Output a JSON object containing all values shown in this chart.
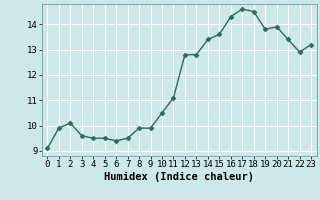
{
  "x": [
    0,
    1,
    2,
    3,
    4,
    5,
    6,
    7,
    8,
    9,
    10,
    11,
    12,
    13,
    14,
    15,
    16,
    17,
    18,
    19,
    20,
    21,
    22,
    23
  ],
  "y": [
    9.1,
    9.9,
    10.1,
    9.6,
    9.5,
    9.5,
    9.4,
    9.5,
    9.9,
    9.9,
    10.5,
    11.1,
    12.8,
    12.8,
    13.4,
    13.6,
    14.3,
    14.6,
    14.5,
    13.8,
    13.9,
    13.4,
    12.9,
    13.2
  ],
  "line_color": "#2e6b5e",
  "marker": "D",
  "marker_size": 2.5,
  "bg_color": "#cce8e8",
  "grid_color": "#ffffff",
  "xlabel": "Humidex (Indice chaleur)",
  "xlim": [
    -0.5,
    23.5
  ],
  "ylim": [
    8.8,
    14.8
  ],
  "yticks": [
    9,
    10,
    11,
    12,
    13,
    14
  ],
  "xticks": [
    0,
    1,
    2,
    3,
    4,
    5,
    6,
    7,
    8,
    9,
    10,
    11,
    12,
    13,
    14,
    15,
    16,
    17,
    18,
    19,
    20,
    21,
    22,
    23
  ],
  "tick_label_size": 6.5,
  "xlabel_fontsize": 7.5,
  "line_width": 1.0
}
